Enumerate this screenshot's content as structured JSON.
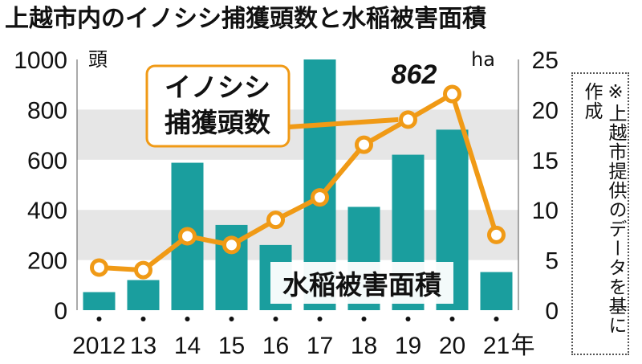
{
  "title": "上越市内のイノシシ捕獲頭数と水稲被害面積",
  "note": "※上越市提供のデータを基に作成",
  "left_unit": "頭",
  "right_unit": "ha",
  "year_suffix": "年",
  "colors": {
    "bar": "#1a9e9e",
    "line": "#f09a16",
    "band": "#e6e6e6",
    "grid": "#bdbdbd",
    "text": "#111111"
  },
  "chart_data": {
    "type": "bar+line",
    "categories": [
      "2012",
      "13",
      "14",
      "15",
      "16",
      "17",
      "18",
      "19",
      "20",
      "21"
    ],
    "series": [
      {
        "name": "イノシシ捕獲頭数",
        "type": "line",
        "axis": "left",
        "values": [
          170,
          160,
          295,
          260,
          360,
          450,
          660,
          760,
          862,
          300
        ]
      },
      {
        "name": "水稲被害面積",
        "type": "bar",
        "axis": "right",
        "values": [
          1.8,
          3.0,
          14.7,
          8.5,
          6.5,
          25.0,
          10.3,
          15.5,
          18.0,
          3.8
        ]
      }
    ],
    "annotation": "862",
    "left_axis": {
      "ylim": [
        0,
        1000
      ],
      "ticks": [
        "0",
        "200",
        "400",
        "600",
        "800",
        "1000"
      ]
    },
    "right_axis": {
      "ylim": [
        0,
        25
      ],
      "ticks": [
        "0",
        "5",
        "10",
        "15",
        "20",
        "25"
      ]
    },
    "xlabel": "",
    "ylabel": "頭",
    "y2label": "ha"
  }
}
